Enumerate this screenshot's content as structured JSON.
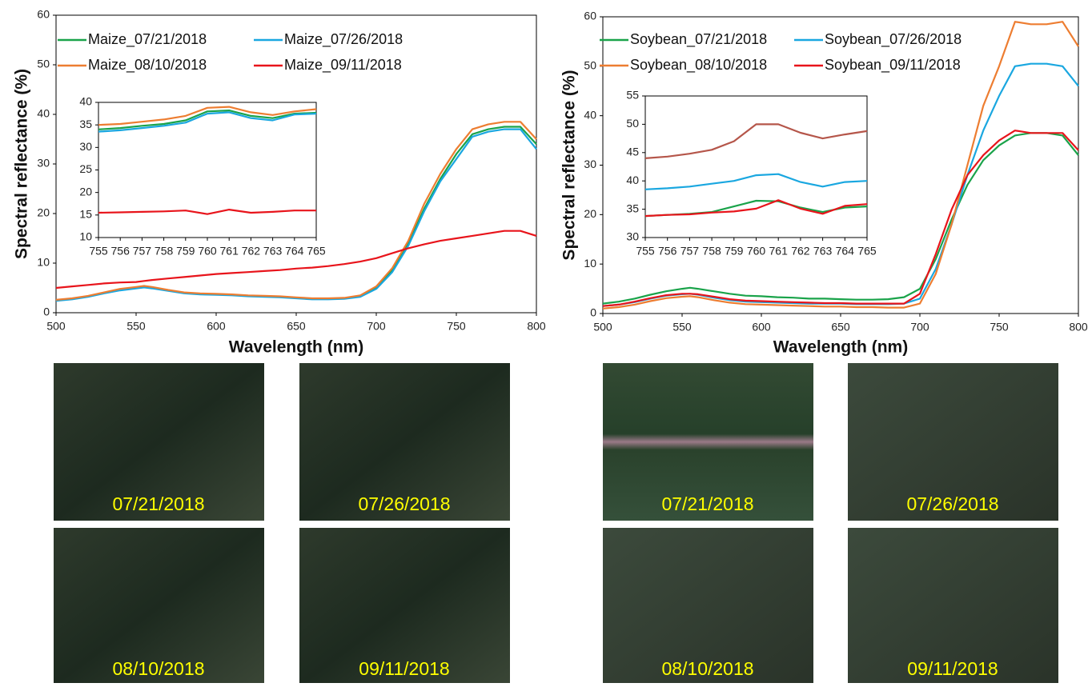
{
  "chart_data": [
    {
      "type": "line",
      "xlabel": "Wavelength (nm)",
      "ylabel": "Spectral reflectance (%)",
      "x": [
        500,
        510,
        520,
        530,
        540,
        550,
        555,
        560,
        570,
        580,
        590,
        600,
        610,
        620,
        630,
        640,
        650,
        660,
        670,
        680,
        690,
        700,
        710,
        720,
        730,
        740,
        750,
        760,
        770,
        780,
        790,
        800
      ],
      "series": [
        {
          "name": "Maize_07/21/2018",
          "color": "#1aa34a",
          "values": [
            2.5,
            2.8,
            3.3,
            4.0,
            4.6,
            5.0,
            5.2,
            5.0,
            4.5,
            4.0,
            3.8,
            3.7,
            3.6,
            3.4,
            3.3,
            3.2,
            3.0,
            2.8,
            2.8,
            2.9,
            3.3,
            5.0,
            8.5,
            14,
            21,
            27,
            32,
            36,
            37,
            37.5,
            37.5,
            34
          ]
        },
        {
          "name": "Maize_07/26/2018",
          "color": "#1aa7e0",
          "values": [
            2.4,
            2.7,
            3.2,
            3.9,
            4.5,
            4.9,
            5.1,
            4.9,
            4.4,
            3.9,
            3.7,
            3.6,
            3.5,
            3.3,
            3.2,
            3.1,
            2.9,
            2.7,
            2.7,
            2.8,
            3.2,
            4.8,
            8.2,
            13.5,
            20.5,
            26.5,
            31,
            35.5,
            36.5,
            37,
            37,
            33
          ]
        },
        {
          "name": "Maize_08/10/2018",
          "color": "#ed7d31",
          "values": [
            2.6,
            2.9,
            3.4,
            4.1,
            4.8,
            5.2,
            5.4,
            5.2,
            4.6,
            4.1,
            3.9,
            3.8,
            3.7,
            3.5,
            3.4,
            3.3,
            3.1,
            2.9,
            2.9,
            3.0,
            3.5,
            5.3,
            9.0,
            14.5,
            22,
            28,
            33,
            37,
            38,
            38.5,
            38.5,
            35
          ]
        },
        {
          "name": "Maize_09/11/2018",
          "color": "#e8141b",
          "values": [
            5.0,
            5.3,
            5.6,
            5.9,
            6.1,
            6.2,
            6.4,
            6.6,
            6.9,
            7.2,
            7.5,
            7.8,
            8.0,
            8.2,
            8.4,
            8.6,
            8.9,
            9.1,
            9.4,
            9.8,
            10.3,
            11,
            12,
            13,
            13.8,
            14.5,
            15,
            15.5,
            16,
            16.5,
            16.5,
            15.5
          ]
        }
      ],
      "xlim": [
        500,
        800
      ],
      "xticks": [
        500,
        550,
        600,
        650,
        700,
        750,
        800
      ],
      "ylim": [
        0,
        60
      ],
      "yticks": [
        0,
        10,
        20,
        30,
        40,
        50,
        60
      ],
      "legend": "top"
    },
    {
      "type": "line",
      "x": [
        755,
        756,
        757,
        758,
        759,
        760,
        761,
        762,
        763,
        764,
        765
      ],
      "series": [
        {
          "color": "#1aa34a",
          "values": [
            34,
            34.3,
            34.8,
            35.2,
            36,
            38,
            38.2,
            37,
            36.5,
            37.5,
            37.7
          ]
        },
        {
          "color": "#1aa7e0",
          "values": [
            33.5,
            33.8,
            34.3,
            34.8,
            35.5,
            37.5,
            37.8,
            36.5,
            36,
            37.3,
            37.5
          ]
        },
        {
          "color": "#ed7d31",
          "values": [
            35,
            35.2,
            35.7,
            36.2,
            37,
            38.8,
            39,
            37.8,
            37.2,
            38,
            38.5
          ]
        },
        {
          "color": "#e8141b",
          "values": [
            15.5,
            15.6,
            15.7,
            15.8,
            16,
            15.2,
            16.2,
            15.5,
            15.7,
            16,
            16
          ]
        }
      ],
      "xlim": [
        755,
        765
      ],
      "xticks": [
        755,
        756,
        757,
        758,
        759,
        760,
        761,
        762,
        763,
        764,
        765
      ],
      "ylim": [
        10,
        40
      ],
      "yticks": [
        10,
        15,
        20,
        25,
        30,
        35,
        40
      ]
    },
    {
      "type": "line",
      "xlabel": "Wavelength (nm)",
      "ylabel": "Spectral reflectance (%)",
      "x": [
        500,
        510,
        520,
        530,
        540,
        550,
        555,
        560,
        570,
        580,
        590,
        600,
        610,
        620,
        630,
        640,
        650,
        660,
        670,
        680,
        690,
        700,
        710,
        720,
        730,
        740,
        750,
        760,
        770,
        780,
        790,
        800
      ],
      "series": [
        {
          "name": "Soybean_07/21/2018",
          "color": "#1aa34a",
          "values": [
            2,
            2.4,
            3,
            3.8,
            4.5,
            5,
            5.2,
            5,
            4.5,
            4,
            3.6,
            3.5,
            3.3,
            3.2,
            3,
            3,
            2.9,
            2.8,
            2.8,
            2.9,
            3.3,
            5,
            11,
            19,
            26,
            31,
            34,
            36,
            36.5,
            36.5,
            36,
            32
          ]
        },
        {
          "name": "Soybean_07/26/2018",
          "color": "#1aa7e0",
          "values": [
            1.5,
            1.8,
            2.3,
            3,
            3.6,
            3.9,
            4,
            3.8,
            3.2,
            2.7,
            2.4,
            2.3,
            2.2,
            2.1,
            2,
            2,
            2,
            1.9,
            1.9,
            1.9,
            2,
            3,
            9,
            18,
            28,
            37,
            44,
            50,
            50.5,
            50.5,
            50,
            46
          ]
        },
        {
          "name": "Soybean_08/10/2018",
          "color": "#ed7d31",
          "values": [
            1,
            1.3,
            1.8,
            2.5,
            3.1,
            3.4,
            3.5,
            3.3,
            2.7,
            2.2,
            1.9,
            1.8,
            1.7,
            1.6,
            1.5,
            1.4,
            1.4,
            1.3,
            1.3,
            1.2,
            1.2,
            2,
            8,
            18,
            30,
            42,
            50,
            59,
            58.5,
            58.5,
            59,
            54
          ]
        },
        {
          "name": "Soybean_09/11/2018",
          "color": "#e8141b",
          "values": [
            1.5,
            1.8,
            2.4,
            3.1,
            3.7,
            4,
            4,
            3.9,
            3.4,
            2.9,
            2.6,
            2.5,
            2.4,
            2.3,
            2.2,
            2.1,
            2.1,
            2,
            2,
            2,
            2,
            4,
            12,
            21,
            28,
            32,
            35,
            37,
            36.5,
            36.5,
            36.5,
            33
          ]
        }
      ],
      "xlim": [
        500,
        800
      ],
      "xticks": [
        500,
        550,
        600,
        650,
        700,
        750,
        800
      ],
      "ylim": [
        0,
        60
      ],
      "yticks": [
        0,
        10,
        20,
        30,
        40,
        50,
        60
      ],
      "legend": "top"
    },
    {
      "type": "line",
      "x": [
        755,
        756,
        757,
        758,
        759,
        760,
        761,
        762,
        763,
        764,
        765
      ],
      "series": [
        {
          "color": "#1aa34a",
          "values": [
            33.8,
            34,
            34.2,
            34.5,
            35.5,
            36.5,
            36.4,
            35.3,
            34.5,
            35.3,
            35.5
          ]
        },
        {
          "color": "#1aa7e0",
          "values": [
            38.5,
            38.7,
            39,
            39.5,
            40,
            41,
            41.2,
            39.8,
            39,
            39.8,
            40
          ]
        },
        {
          "color": "#b5564a",
          "values": [
            44,
            44.3,
            44.8,
            45.5,
            47,
            50,
            50,
            48.5,
            47.5,
            48.2,
            48.8
          ]
        },
        {
          "color": "#e8141b",
          "values": [
            33.8,
            34,
            34.1,
            34.4,
            34.6,
            35.1,
            36.6,
            35.1,
            34.2,
            35.6,
            35.9
          ]
        }
      ],
      "xlim": [
        755,
        765
      ],
      "xticks": [
        755,
        756,
        757,
        758,
        759,
        760,
        761,
        762,
        763,
        764,
        765
      ],
      "ylim": [
        30,
        55
      ],
      "yticks": [
        30,
        35,
        40,
        45,
        50,
        55
      ]
    }
  ],
  "photos": [
    {
      "label": "07/21/2018"
    },
    {
      "label": "07/26/2018"
    },
    {
      "label": "08/10/2018"
    },
    {
      "label": "09/11/2018"
    },
    {
      "label": "07/21/2018"
    },
    {
      "label": "07/26/2018"
    },
    {
      "label": "08/10/2018"
    },
    {
      "label": "09/11/2018"
    }
  ]
}
